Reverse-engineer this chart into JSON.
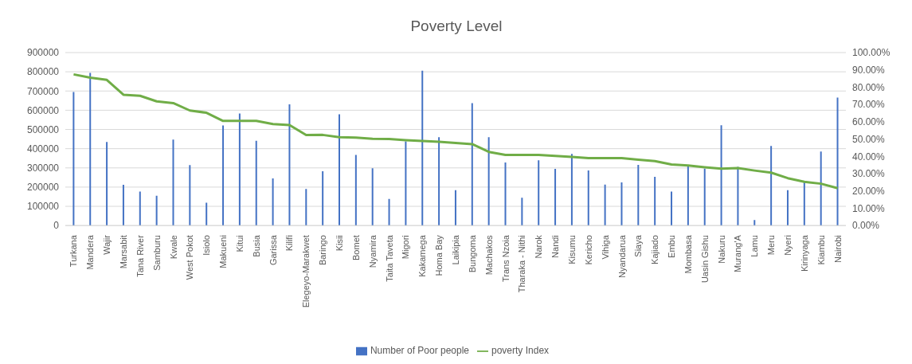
{
  "chart_data": {
    "type": "bar",
    "title": "Poverty Level",
    "categories": [
      "Turkana",
      "Mandera",
      "Wajir",
      "Marsabit",
      "Tana River",
      "Samburu",
      "Kwale",
      "West Pokot",
      "Isiolo",
      "Makueni",
      "Kitui",
      "Busia",
      "Garissa",
      "Kilifi",
      "Elegeyo-Marakwet",
      "Baringo",
      "Kisii",
      "Bomet",
      "Nyamira",
      "Taita Taveta",
      "Migori",
      "Kakamega",
      "Homa Bay",
      "Laikipia",
      "Bungoma",
      "Machakos",
      "Trans Nzoia",
      "Tharaka - Nithi",
      "Narok",
      "Nandi",
      "Kisumu",
      "Kericho",
      "Vihiga",
      "Nyandarua",
      "Siaya",
      "Kajiado",
      "Embu",
      "Mombasa",
      "Uasin Gishu",
      "Nakuru",
      "Murang'A",
      "Lamu",
      "Meru",
      "Nyeri",
      "Kirinyaga",
      "Kiambu",
      "Nairobi"
    ],
    "series": [
      {
        "name": "Number of Poor people",
        "color": "#4472c4",
        "values": [
          695000,
          794000,
          435000,
          212000,
          177000,
          155000,
          447000,
          315000,
          119000,
          521000,
          583000,
          441000,
          245000,
          631000,
          190000,
          282000,
          579000,
          367000,
          298000,
          139000,
          438000,
          806000,
          460000,
          184000,
          637000,
          460000,
          328000,
          145000,
          340000,
          295000,
          373000,
          287000,
          213000,
          225000,
          316000,
          253000,
          177000,
          311000,
          296000,
          522000,
          305000,
          29000,
          414000,
          184000,
          225000,
          385000,
          666000
        ]
      },
      {
        "name": "poverty Index",
        "type": "line",
        "axis": "y2",
        "color": "#70ad47",
        "values": [
          87.4,
          85.5,
          84.2,
          75.6,
          75.0,
          71.8,
          70.8,
          66.5,
          65.2,
          60.5,
          60.5,
          60.5,
          58.7,
          58.1,
          52.3,
          52.4,
          51.1,
          50.8,
          50.2,
          50.0,
          49.4,
          48.9,
          48.4,
          47.7,
          47.1,
          42.6,
          40.8,
          40.8,
          40.8,
          40.2,
          39.7,
          39.0,
          39.0,
          39.0,
          38.1,
          37.3,
          35.3,
          34.7,
          33.7,
          32.9,
          33.2,
          31.8,
          30.6,
          27.4,
          25.3,
          24.2,
          21.6
        ]
      }
    ],
    "ylim": [
      0,
      900000
    ],
    "yticks": [
      0,
      100000,
      200000,
      300000,
      400000,
      500000,
      600000,
      700000,
      800000,
      900000
    ],
    "y2lim": [
      0,
      100
    ],
    "y2ticks": [
      {
        "value": 0,
        "label": "0.00%"
      },
      {
        "value": 10,
        "label": "10.00%"
      },
      {
        "value": 20,
        "label": "20.00%"
      },
      {
        "value": 30,
        "label": "30.00%"
      },
      {
        "value": 40,
        "label": "40.00%"
      },
      {
        "value": 50,
        "label": "50.00%"
      },
      {
        "value": 60,
        "label": "60.00%"
      },
      {
        "value": 70,
        "label": "70.00%"
      },
      {
        "value": 80,
        "label": "80.00%"
      },
      {
        "value": 90,
        "label": "90.00%"
      },
      {
        "value": 100,
        "label": "100.00%"
      }
    ],
    "grid": "y",
    "legend": "bottom",
    "marker": "none",
    "line_style": "solid"
  }
}
